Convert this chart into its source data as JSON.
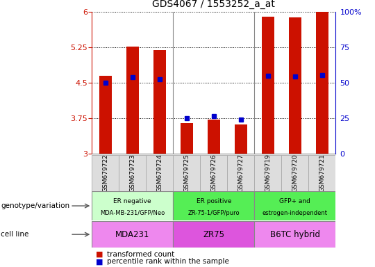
{
  "title": "GDS4067 / 1553252_a_at",
  "samples": [
    "GSM679722",
    "GSM679723",
    "GSM679724",
    "GSM679725",
    "GSM679726",
    "GSM679727",
    "GSM679719",
    "GSM679720",
    "GSM679721"
  ],
  "bar_values": [
    4.65,
    5.27,
    5.19,
    3.65,
    3.72,
    3.62,
    5.9,
    5.88,
    6.0
  ],
  "percentile_values": [
    4.5,
    4.62,
    4.57,
    3.75,
    3.8,
    3.72,
    4.65,
    4.64,
    4.66
  ],
  "ylim": [
    3.0,
    6.0
  ],
  "yticks": [
    3.0,
    3.75,
    4.5,
    5.25,
    6.0
  ],
  "ytick_labels": [
    "3",
    "3.75",
    "4.5",
    "5.25",
    "6"
  ],
  "right_yticks": [
    0,
    25,
    50,
    75,
    100
  ],
  "right_ytick_labels": [
    "0",
    "25",
    "50",
    "75",
    "100%"
  ],
  "bar_color": "#cc1100",
  "dot_color": "#0000cc",
  "groups": [
    {
      "label": "ER negative\nMDA-MB-231/GFP/Neo",
      "start": 0,
      "end": 3,
      "bg_color": "#ccffcc"
    },
    {
      "label": "ER positive\nZR-75-1/GFP/puro",
      "start": 3,
      "end": 6,
      "bg_color": "#55ee55"
    },
    {
      "label": "GFP+ and\nestrogen-independent",
      "start": 6,
      "end": 9,
      "bg_color": "#55ee55"
    }
  ],
  "cell_lines": [
    {
      "label": "MDA231",
      "start": 0,
      "end": 3,
      "bg_color": "#ee88ee"
    },
    {
      "label": "ZR75",
      "start": 3,
      "end": 6,
      "bg_color": "#dd55dd"
    },
    {
      "label": "B6TC hybrid",
      "start": 6,
      "end": 9,
      "bg_color": "#ee88ee"
    }
  ],
  "legend_items": [
    {
      "color": "#cc1100",
      "label": "transformed count"
    },
    {
      "color": "#0000cc",
      "label": "percentile rank within the sample"
    }
  ],
  "left_label": "genotype/variation",
  "cell_line_label": "cell line",
  "bar_width": 0.45,
  "group_sep_color": "#888888",
  "grid_linestyle": ":",
  "grid_linewidth": 0.8
}
